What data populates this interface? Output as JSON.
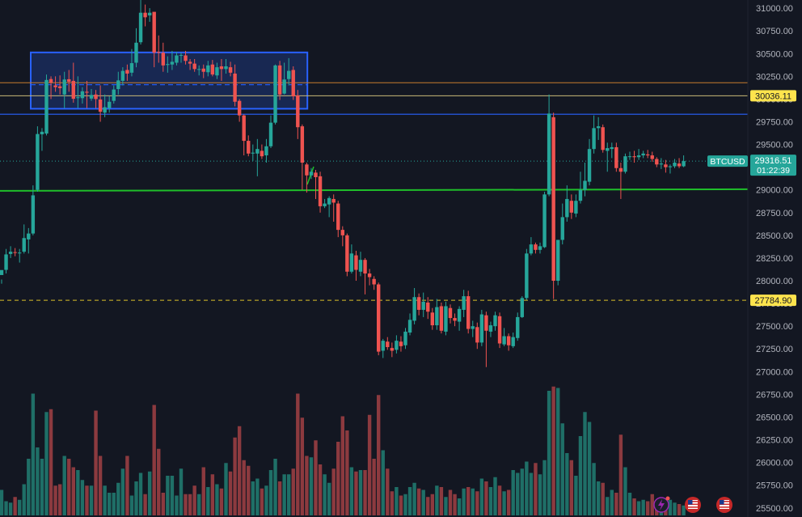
{
  "colors": {
    "background": "#131722",
    "up": "#26a69a",
    "down": "#ef5350",
    "vol_up": "#1f6f67",
    "vol_down": "#8c3a3f",
    "axis_text": "#b2b5be",
    "box_fill": "#1b2f63",
    "box_stroke": "#2962ff",
    "blue_line": "#2962ff",
    "green_line": "#1fbf2a",
    "beige_line": "#c9b978",
    "orange_line": "#c77d2e",
    "yellow_dash": "#d9c02a",
    "last_price_bg": "#26a69a",
    "level_label_bg": "#ffe44d"
  },
  "chart_data": {
    "type": "candlestick",
    "symbol": "BTCUSD",
    "ylim": [
      25400,
      31090
    ],
    "price_ticks": [
      "31000.00",
      "30750.00",
      "30500.00",
      "30250.00",
      "30000.00",
      "29750.00",
      "29500.00",
      "29250.00",
      "29000.00",
      "28750.00",
      "28500.00",
      "28250.00",
      "28000.00",
      "27750.00",
      "27500.00",
      "27250.00",
      "27000.00",
      "26750.00",
      "26500.00",
      "26250.00",
      "26000.00",
      "25750.00",
      "25500.00"
    ],
    "last_price": {
      "symbol": "BTCUSD",
      "value": "29316.51",
      "countdown": "01:22:39",
      "price": 29316.51
    },
    "level_labels": [
      {
        "text": "30036.11",
        "price": 30036.11
      },
      {
        "text": "27784.90",
        "price": 27784.9
      }
    ],
    "horizontal_lines": [
      {
        "kind": "beige",
        "price": 30036.11
      },
      {
        "kind": "blue",
        "price": 29833
      },
      {
        "kind": "green",
        "price": 28998,
        "slope_per_candle": -0.2
      },
      {
        "kind": "yellow-dashed",
        "price": 27784.9
      },
      {
        "kind": "last-price-dotted",
        "price": 29316.51
      }
    ],
    "range_box": {
      "start_index": 0,
      "end_index": 64,
      "top": 30513,
      "bottom": 29893,
      "mid": 30158
    },
    "volume_ref_level": 0.84,
    "candles": [
      [
        28063,
        28118,
        28013,
        27968,
        0.18
      ],
      [
        28120,
        28290,
        28350,
        28080,
        0.1
      ],
      [
        28295,
        28320,
        28380,
        28250,
        0.09
      ],
      [
        28315,
        28308,
        28360,
        28270,
        0.13
      ],
      [
        28305,
        28310,
        28350,
        28200,
        0.11
      ],
      [
        28320,
        28470,
        28620,
        28300,
        0.22
      ],
      [
        28455,
        28520,
        28580,
        28300,
        0.4
      ],
      [
        28520,
        28940,
        29050,
        28500,
        0.86
      ],
      [
        29000,
        29615,
        29700,
        28980,
        0.48
      ],
      [
        29612,
        29640,
        29680,
        29430,
        0.4
      ],
      [
        29620,
        30210,
        30270,
        29600,
        0.73
      ],
      [
        30220,
        30180,
        30250,
        30000,
        0.75
      ],
      [
        30150,
        30130,
        30250,
        30080,
        0.21
      ],
      [
        30140,
        30120,
        30260,
        30050,
        0.22
      ],
      [
        30050,
        30215,
        30300,
        29900,
        0.42
      ],
      [
        30218,
        30190,
        30320,
        30080,
        0.4
      ],
      [
        30200,
        30003,
        30400,
        29960,
        0.34
      ],
      [
        30010,
        30020,
        30250,
        29900,
        0.32
      ],
      [
        30010,
        30085,
        30130,
        29950,
        0.25
      ],
      [
        30080,
        30070,
        30200,
        29900,
        0.21
      ],
      [
        30005,
        30045,
        30110,
        29980,
        0.21
      ],
      [
        30050,
        30000,
        30100,
        29900,
        0.74
      ],
      [
        29995,
        29860,
        30150,
        29750,
        0.42
      ],
      [
        29850,
        29910,
        30050,
        29800,
        0.21
      ],
      [
        29900,
        29970,
        30030,
        29850,
        0.16
      ],
      [
        29980,
        30105,
        30150,
        29950,
        0.16
      ],
      [
        30110,
        30205,
        30300,
        30050,
        0.23
      ],
      [
        30200,
        30310,
        30350,
        30150,
        0.33
      ],
      [
        30320,
        30280,
        30380,
        30200,
        0.42
      ],
      [
        30290,
        30395,
        30550,
        30250,
        0.14
      ],
      [
        30400,
        30620,
        30780,
        30350,
        0.24
      ],
      [
        30625,
        30950,
        31100,
        30600,
        0.3
      ],
      [
        30950,
        30900,
        31040,
        30800,
        0.15
      ],
      [
        30920,
        30950,
        31000,
        30850,
        0.31
      ],
      [
        30960,
        30510,
        30920,
        30350,
        0.78
      ],
      [
        30520,
        30510,
        30700,
        30400,
        0.47
      ],
      [
        30510,
        30370,
        30620,
        30300,
        0.16
      ],
      [
        30375,
        30385,
        30470,
        30290,
        0.28
      ],
      [
        30380,
        30410,
        30530,
        30320,
        0.28
      ],
      [
        30400,
        30480,
        30520,
        30370,
        0.14
      ],
      [
        30478,
        30485,
        30510,
        30400,
        0.33
      ],
      [
        30480,
        30420,
        30530,
        30380,
        0.15
      ],
      [
        30410,
        30390,
        30440,
        30320,
        0.15
      ],
      [
        30390,
        30330,
        30440,
        30300,
        0.21
      ],
      [
        30330,
        30330,
        30370,
        30260,
        0.15
      ],
      [
        30335,
        30300,
        30380,
        30230,
        0.34
      ],
      [
        30295,
        30370,
        30420,
        30250,
        0.2
      ],
      [
        30380,
        30270,
        30430,
        30250,
        0.29
      ],
      [
        30260,
        30350,
        30400,
        30220,
        0.22
      ],
      [
        30360,
        30330,
        30440,
        30200,
        0.19
      ],
      [
        30330,
        30360,
        30440,
        30280,
        0.37
      ],
      [
        30350,
        30290,
        30410,
        30250,
        0.31
      ],
      [
        30280,
        29970,
        30380,
        29920,
        0.55
      ],
      [
        29980,
        29820,
        30000,
        29750,
        0.63
      ],
      [
        29820,
        29540,
        29830,
        29380,
        0.39
      ],
      [
        29540,
        29400,
        29600,
        29370,
        0.35
      ],
      [
        29400,
        29410,
        29500,
        29320,
        0.24
      ],
      [
        29400,
        29450,
        29560,
        29150,
        0.26
      ],
      [
        29430,
        29370,
        29500,
        29340,
        0.19
      ],
      [
        29380,
        29480,
        29560,
        29300,
        0.21
      ],
      [
        29480,
        29740,
        29820,
        29460,
        0.32
      ],
      [
        29740,
        30370,
        30380,
        29720,
        0.4
      ],
      [
        30370,
        30050,
        30420,
        29990,
        0.24
      ],
      [
        30060,
        30215,
        30400,
        30050,
        0.29
      ],
      [
        30220,
        30310,
        30450,
        30150,
        0.29
      ],
      [
        30320,
        30030,
        30360,
        29990,
        0.33
      ],
      [
        30040,
        29690,
        30100,
        29560,
        0.86
      ],
      [
        29700,
        29300,
        29720,
        29000,
        0.69
      ],
      [
        29280,
        29160,
        29300,
        28970,
        0.42
      ],
      [
        29160,
        29200,
        29240,
        29120,
        0.41
      ],
      [
        29190,
        29140,
        29220,
        28900,
        0.53
      ],
      [
        29150,
        28820,
        29200,
        28750,
        0.36
      ],
      [
        28820,
        28850,
        28900,
        28800,
        0.29
      ],
      [
        28840,
        28910,
        28930,
        28700,
        0.23
      ],
      [
        28900,
        28860,
        28950,
        28650,
        0.33
      ],
      [
        28850,
        28560,
        28880,
        28480,
        0.52
      ],
      [
        28560,
        28500,
        28600,
        28380,
        0.7
      ],
      [
        28500,
        28100,
        28520,
        28050,
        0.6
      ],
      [
        28100,
        28300,
        28400,
        28080,
        0.34
      ],
      [
        28280,
        28120,
        28330,
        28000,
        0.31
      ],
      [
        28100,
        28230,
        28320,
        28050,
        0.32
      ],
      [
        28230,
        28080,
        28250,
        27850,
        0.32
      ],
      [
        28080,
        28040,
        28130,
        27950,
        0.71
      ],
      [
        28020,
        27960,
        28050,
        27900,
        0.4
      ],
      [
        27960,
        27220,
        27980,
        27180,
        0.85
      ],
      [
        27230,
        27340,
        27360,
        27150,
        0.46
      ],
      [
        27330,
        27270,
        27380,
        27240,
        0.33
      ],
      [
        27260,
        27230,
        27320,
        27160,
        0.17
      ],
      [
        27240,
        27340,
        27400,
        27200,
        0.2
      ],
      [
        27330,
        27280,
        27390,
        27220,
        0.14
      ],
      [
        27290,
        27440,
        27480,
        27250,
        0.15
      ],
      [
        27430,
        27570,
        27640,
        27400,
        0.2
      ],
      [
        27560,
        27820,
        27920,
        27520,
        0.23
      ],
      [
        27820,
        27680,
        27860,
        27620,
        0.19
      ],
      [
        27680,
        27770,
        27870,
        27600,
        0.18
      ],
      [
        27760,
        27660,
        27820,
        27580,
        0.13
      ],
      [
        27650,
        27510,
        27700,
        27460,
        0.15
      ],
      [
        27510,
        27710,
        27800,
        27460,
        0.21
      ],
      [
        27720,
        27450,
        27760,
        27420,
        0.2
      ],
      [
        27440,
        27720,
        27770,
        27400,
        0.13
      ],
      [
        27700,
        27590,
        27740,
        27530,
        0.18
      ],
      [
        27590,
        27560,
        27640,
        27500,
        0.15
      ],
      [
        27550,
        27690,
        27720,
        27450,
        0.12
      ],
      [
        27680,
        27830,
        27900,
        27600,
        0.19
      ],
      [
        27830,
        27470,
        27890,
        27420,
        0.2
      ],
      [
        27470,
        27500,
        27560,
        27380,
        0.19
      ],
      [
        27490,
        27320,
        27540,
        27250,
        0.17
      ],
      [
        27320,
        27630,
        27680,
        27280,
        0.26
      ],
      [
        27620,
        27450,
        27660,
        27050,
        0.24
      ],
      [
        27440,
        27510,
        27550,
        27380,
        0.2
      ],
      [
        27500,
        27620,
        27660,
        27450,
        0.27
      ],
      [
        27610,
        27310,
        27650,
        27260,
        0.21
      ],
      [
        27300,
        27390,
        27480,
        27280,
        0.17
      ],
      [
        27390,
        27290,
        27420,
        27230,
        0.18
      ],
      [
        27280,
        27380,
        27430,
        27260,
        0.32
      ],
      [
        27370,
        27600,
        27650,
        27340,
        0.3
      ],
      [
        27600,
        27810,
        27830,
        27590,
        0.33
      ],
      [
        27810,
        28300,
        28350,
        27790,
        0.38
      ],
      [
        28300,
        28400,
        28480,
        28280,
        0.3
      ],
      [
        28400,
        28340,
        28420,
        28300,
        0.37
      ],
      [
        28340,
        28380,
        28420,
        28300,
        0.29
      ],
      [
        28370,
        28950,
        28980,
        28360,
        0.39
      ],
      [
        28950,
        29840,
        30050,
        28930,
        0.88
      ],
      [
        29800,
        28000,
        29850,
        27800,
        0.91
      ],
      [
        28000,
        28450,
        28450,
        27950,
        0.9
      ],
      [
        28450,
        28700,
        28850,
        28400,
        0.65
      ],
      [
        28700,
        28900,
        29050,
        28650,
        0.44
      ],
      [
        28880,
        28750,
        28950,
        28680,
        0.39
      ],
      [
        28740,
        28880,
        28950,
        28700,
        0.28
      ],
      [
        28880,
        29000,
        29200,
        28850,
        0.56
      ],
      [
        29000,
        29100,
        29300,
        28930,
        0.73
      ],
      [
        29090,
        29450,
        29560,
        29050,
        0.66
      ],
      [
        29450,
        29680,
        29820,
        29400,
        0.37
      ],
      [
        29680,
        29700,
        29800,
        29550,
        0.24
      ],
      [
        29690,
        29440,
        29720,
        29410,
        0.23
      ],
      [
        29430,
        29460,
        29520,
        29200,
        0.13
      ],
      [
        29450,
        29470,
        29520,
        29350,
        0.18
      ],
      [
        29470,
        29240,
        29520,
        29200,
        0.16
      ],
      [
        29240,
        29200,
        29300,
        28900,
        0.57
      ],
      [
        29200,
        29370,
        29400,
        29180,
        0.34
      ],
      [
        29370,
        29370,
        29420,
        29330,
        0.16
      ],
      [
        29370,
        29360,
        29430,
        29300,
        0.12
      ],
      [
        29360,
        29380,
        29450,
        29330,
        0.1
      ],
      [
        29380,
        29400,
        29430,
        29350,
        0.11
      ],
      [
        29390,
        29380,
        29440,
        29350,
        0.1
      ],
      [
        29380,
        29340,
        29420,
        29310,
        0.15
      ],
      [
        29340,
        29280,
        29360,
        29250,
        0.1
      ],
      [
        29280,
        29290,
        29350,
        29230,
        0.09
      ],
      [
        29280,
        29250,
        29330,
        29190,
        0.09
      ],
      [
        29250,
        29260,
        29280,
        29180,
        0.11
      ],
      [
        29260,
        29300,
        29340,
        29240,
        0.09
      ],
      [
        29290,
        29260,
        29350,
        29240,
        0.08
      ],
      [
        29260,
        29317,
        29380,
        29250,
        0.07
      ]
    ]
  },
  "toolbar": {
    "icons": [
      {
        "name": "lightning-alert-icon",
        "color": "#9c27b0"
      },
      {
        "name": "us-flag-icon",
        "color": "#c62828"
      },
      {
        "name": "us-flag-icon-2",
        "color": "#c62828"
      }
    ]
  }
}
